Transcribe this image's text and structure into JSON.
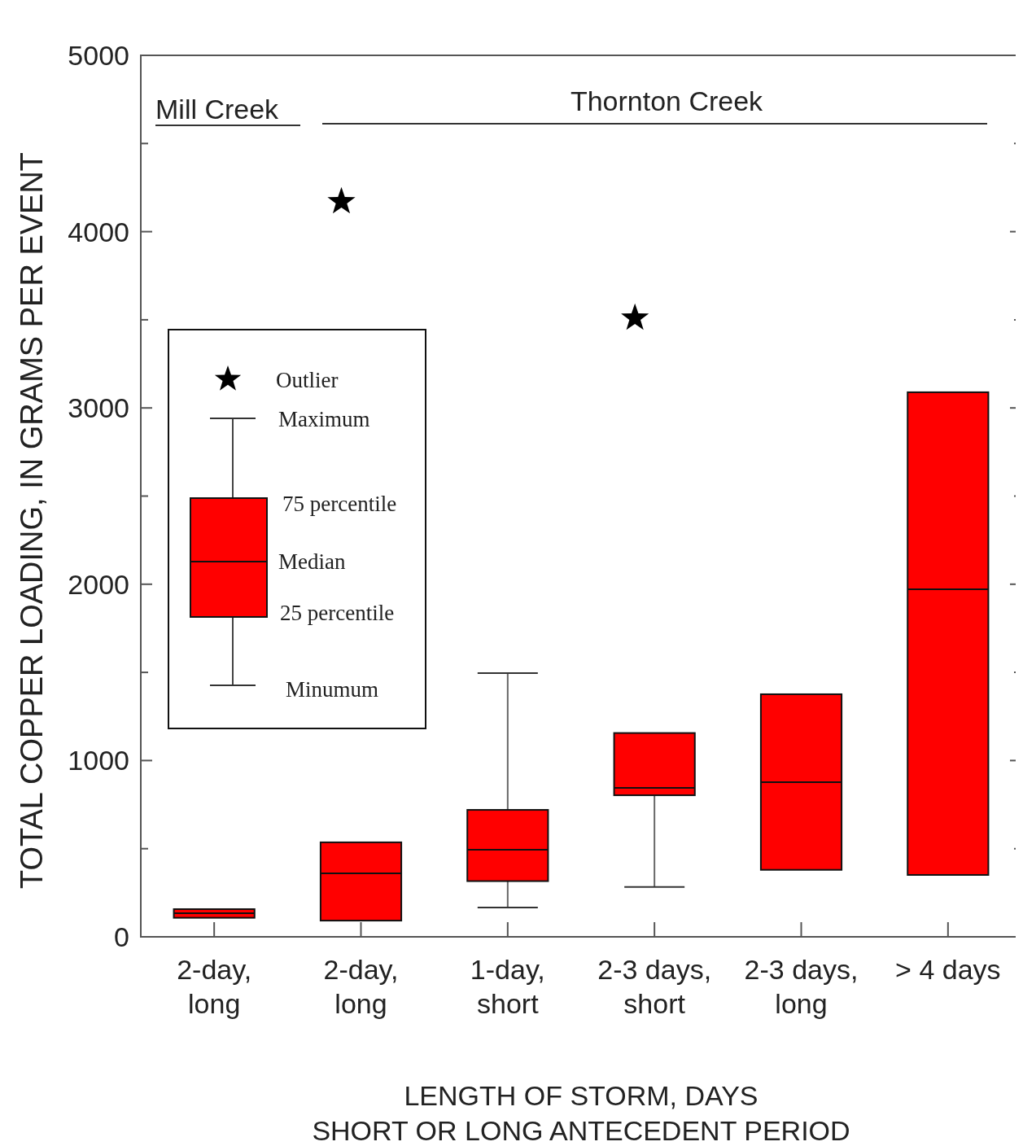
{
  "chart_data": {
    "type": "box",
    "xlabel": "LENGTH OF STORM, DAYS\nSHORT OR LONG ANTECEDENT PERIOD",
    "ylabel": "TOTAL COPPER LOADING, IN GRAMS PER EVENT",
    "categories": [
      "2-day,\nlong",
      "2-day,\nlong",
      "1-day,\nshort",
      "2-3 days,\nshort",
      "2-3 days,\nlong",
      "> 4 days"
    ],
    "color": "#ff0000",
    "marker": "star",
    "boxes": [
      {
        "low": 108,
        "q1": 108,
        "median": 134,
        "q3": 157,
        "high": 157
      },
      {
        "low": 92,
        "q1": 92,
        "median": 360,
        "q3": 536,
        "high": 536,
        "outliers": [
          4170
        ]
      },
      {
        "low": 166,
        "q1": 316,
        "median": 494,
        "q3": 720,
        "high": 1496
      },
      {
        "low": 283,
        "q1": 803,
        "median": 845,
        "q3": 1156,
        "high": 1156,
        "outliers": [
          3510
        ]
      },
      {
        "low": 380,
        "q1": 380,
        "median": 877,
        "q3": 1376,
        "high": 1376
      },
      {
        "low": 351,
        "q1": 351,
        "median": 1971,
        "q3": 3089,
        "high": 3089
      }
    ],
    "ylim": [
      0,
      5000
    ],
    "yticks": [
      0,
      {
        "value": 500,
        "label": null
      },
      1000,
      {
        "value": 1500,
        "label": null
      },
      2000,
      {
        "value": 2500,
        "label": null
      },
      3000,
      {
        "value": 3500,
        "label": null
      },
      4000,
      {
        "value": 4500,
        "label": null
      },
      5000
    ],
    "annotations": [
      "Mill Creek",
      "Thornton Creek",
      "Outlier",
      "Maximum",
      "75 percentile",
      "Median",
      "25 percentile",
      "Minumum"
    ]
  }
}
